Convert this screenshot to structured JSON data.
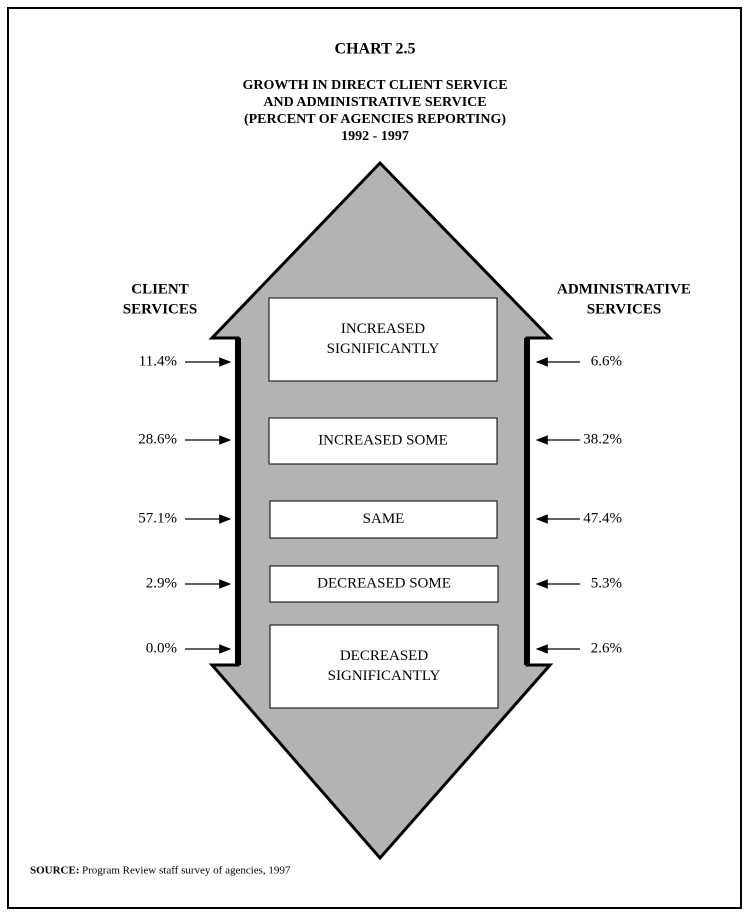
{
  "title": "CHART 2.5",
  "subtitle": [
    "GROWTH IN DIRECT CLIENT SERVICE",
    "AND ADMINISTRATIVE SERVICE",
    "(PERCENT OF AGENCIES REPORTING)",
    "1992 - 1997"
  ],
  "left_header": [
    "CLIENT",
    "SERVICES"
  ],
  "right_header": [
    "ADMINISTRATIVE",
    "SERVICES"
  ],
  "rows": [
    {
      "label": [
        "INCREASED",
        "SIGNIFICANTLY"
      ],
      "client": "11.4%",
      "admin": "6.6%"
    },
    {
      "label": [
        "INCREASED SOME"
      ],
      "client": "28.6%",
      "admin": "38.2%"
    },
    {
      "label": [
        "SAME"
      ],
      "client": "57.1%",
      "admin": "47.4%"
    },
    {
      "label": [
        "DECREASED SOME"
      ],
      "client": "2.9%",
      "admin": "5.3%"
    },
    {
      "label": [
        "DECREASED",
        "SIGNIFICANTLY"
      ],
      "client": "0.0%",
      "admin": "2.6%"
    }
  ],
  "source": {
    "label": "SOURCE:",
    "text": "Program Review staff survey of agencies, 1997"
  }
}
